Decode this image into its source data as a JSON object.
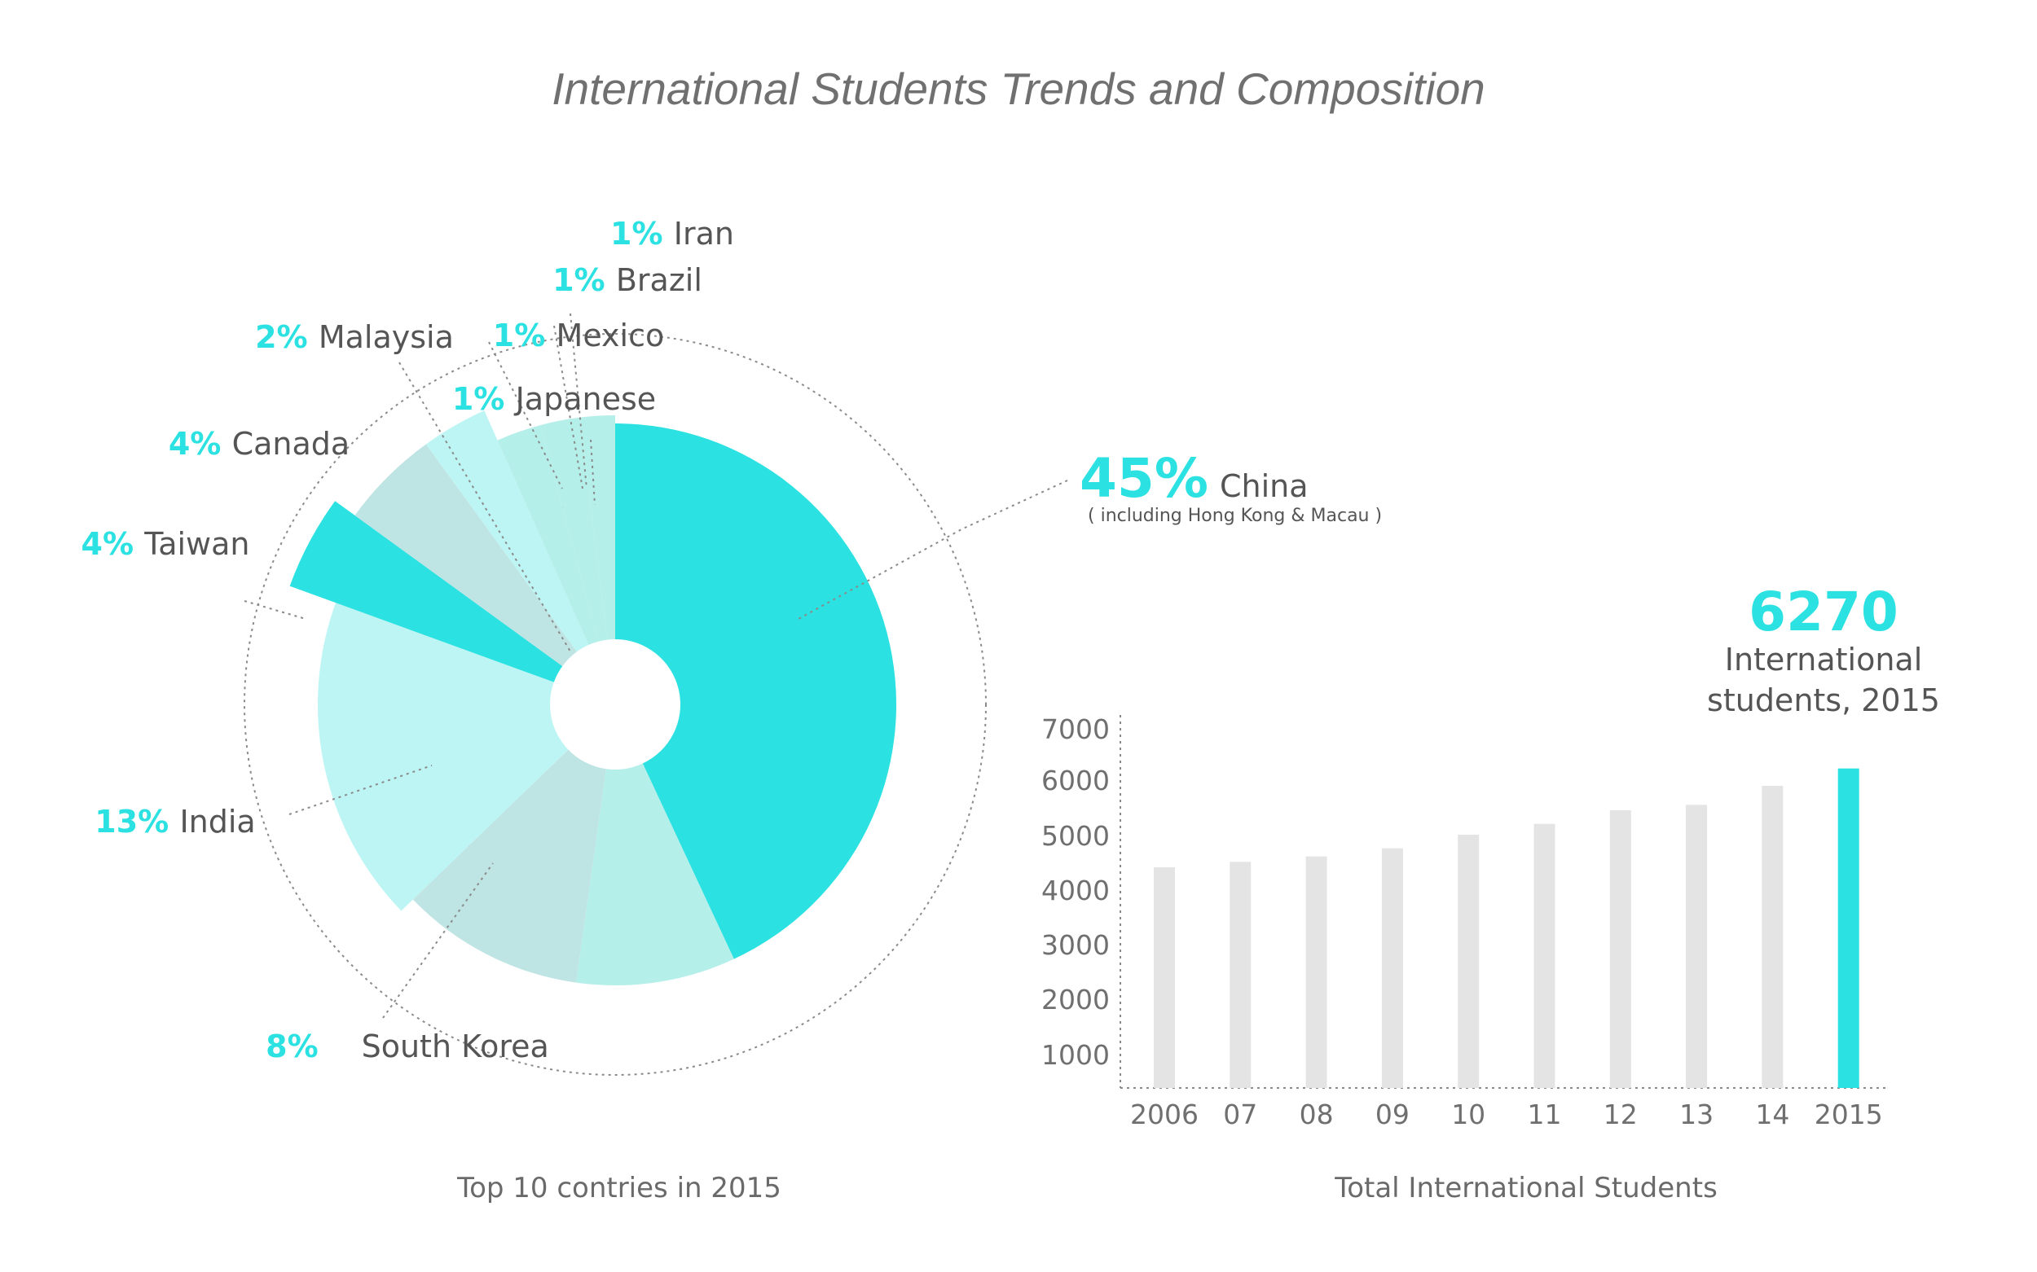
{
  "title": "International Students Trends and Composition",
  "colors": {
    "accent": "#2ce1e1",
    "slice_light_cyan": "#bdf5f4",
    "slice_pale_teal": "#bfe4e4",
    "slice_mint": "#b4efea",
    "bar_gray": "#e4e4e4",
    "text": "#555555"
  },
  "chart_data": [
    {
      "type": "pie",
      "subtype": "variable-radius polar area",
      "caption": "Top 10  contries in 2015",
      "slices": [
        {
          "country": "China",
          "percent": 45,
          "pct_label": "45%",
          "note": "( including Hong Kong & Macau )"
        },
        {
          "country": "South Korea",
          "percent": 8,
          "pct_label": "8%"
        },
        {
          "country": "India",
          "percent": 13,
          "pct_label": "13%"
        },
        {
          "country": "Taiwan",
          "percent": 4,
          "pct_label": "4%"
        },
        {
          "country": "Canada",
          "percent": 4,
          "pct_label": "4%"
        },
        {
          "country": "Malaysia",
          "percent": 2,
          "pct_label": "2%"
        },
        {
          "country": "Mexico",
          "percent": 1,
          "pct_label": "1%"
        },
        {
          "country": "Brazil",
          "percent": 1,
          "pct_label": "1%"
        },
        {
          "country": "Iran",
          "percent": 1,
          "pct_label": "1%"
        },
        {
          "country": "Japanese",
          "percent": 1,
          "pct_label": "1%"
        }
      ]
    },
    {
      "type": "bar",
      "caption": "Total International Students",
      "categories": [
        "2006",
        "07",
        "08",
        "09",
        "10",
        "11",
        "12",
        "13",
        "14",
        "2015"
      ],
      "values": [
        4450,
        4550,
        4650,
        4800,
        5050,
        5250,
        5500,
        5600,
        5950,
        6270
      ],
      "yticks": [
        1000,
        2000,
        3000,
        4000,
        5000,
        6000,
        7000
      ],
      "ylim": [
        0,
        7000
      ],
      "highlight": {
        "category": "2015",
        "value": "6270",
        "line1": "International",
        "line2": "students, 2015"
      }
    }
  ]
}
